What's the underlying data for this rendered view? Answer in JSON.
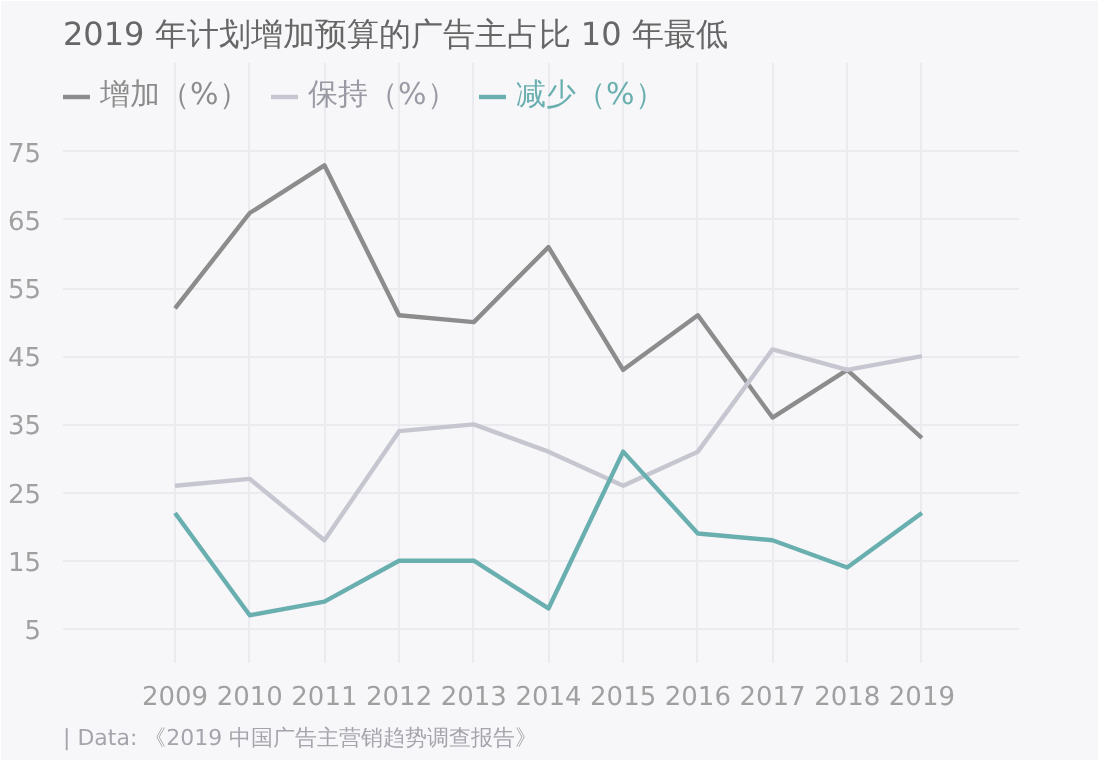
{
  "chart_data": {
    "type": "line",
    "title": "2019 年计划增加预算的广告主占比 10 年最低",
    "x": [
      2009,
      2010,
      2011,
      2012,
      2013,
      2014,
      2015,
      2016,
      2017,
      2018,
      2019
    ],
    "series": [
      {
        "name": "增加（%）",
        "color": "#8c8c8c",
        "values": [
          52,
          66,
          73,
          51,
          50,
          61,
          43,
          51,
          36,
          43,
          33
        ]
      },
      {
        "name": "保持（%）",
        "color": "#c6c6d0",
        "values": [
          26,
          27,
          18,
          34,
          35,
          31,
          26,
          31,
          46,
          43,
          45
        ]
      },
      {
        "name": "减少（%）",
        "color": "#6aafb0",
        "values": [
          22,
          7,
          9,
          15,
          15,
          8,
          31,
          19,
          18,
          14,
          22
        ]
      }
    ],
    "xlim": [
      2007.5,
      2020.3
    ],
    "xticks": [
      2009,
      2010,
      2011,
      2012,
      2013,
      2014,
      2015,
      2016,
      2017,
      2018,
      2019
    ],
    "ylim": [
      0,
      88
    ],
    "yticks": [
      5,
      15,
      25,
      35,
      45,
      55,
      65,
      75
    ],
    "grid": true,
    "legend": "top left",
    "marker": "none",
    "line_style": "solid",
    "annotations": [
      "| Data: 《2019 中国广告主营销趋势调查报告》"
    ]
  }
}
